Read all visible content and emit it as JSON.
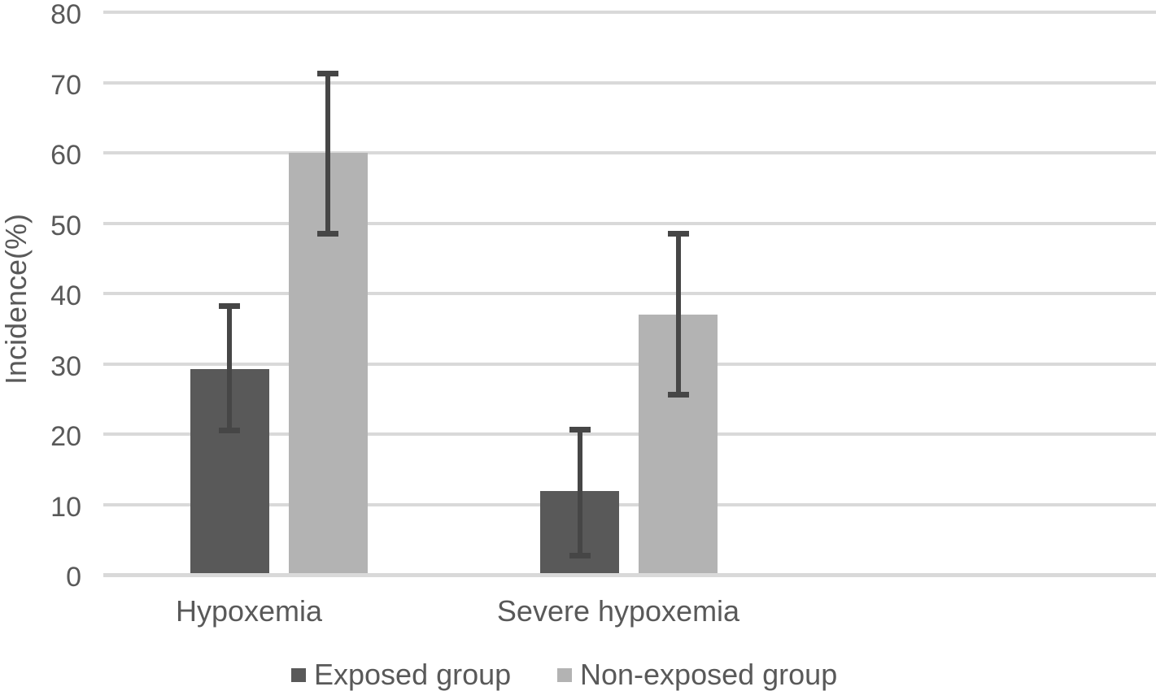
{
  "chart_data": {
    "type": "bar",
    "title": "",
    "xlabel": "",
    "ylabel": "Incidence(%)",
    "ylim": [
      0,
      80
    ],
    "yticks": [
      0,
      10,
      20,
      30,
      40,
      50,
      60,
      70,
      80
    ],
    "grid": true,
    "legend_position": "bottom",
    "categories": [
      "Hypoxemia",
      "Severe hypoxemia"
    ],
    "series": [
      {
        "name": "Exposed group",
        "color": "#595959",
        "values": [
          29.3,
          11.9
        ],
        "err_low": [
          20.5,
          2.7
        ],
        "err_high": [
          38.2,
          20.6
        ]
      },
      {
        "name": "Non-exposed group",
        "color": "#b3b3b3",
        "values": [
          60.0,
          37.0
        ],
        "err_low": [
          48.5,
          25.6
        ],
        "err_high": [
          71.3,
          48.5
        ]
      }
    ],
    "colors": {
      "gridline": "#d9d9d9",
      "axis_line": "#d9d9d9",
      "error_bar": "#464646",
      "text": "#595959",
      "background": "#ffffff"
    }
  }
}
